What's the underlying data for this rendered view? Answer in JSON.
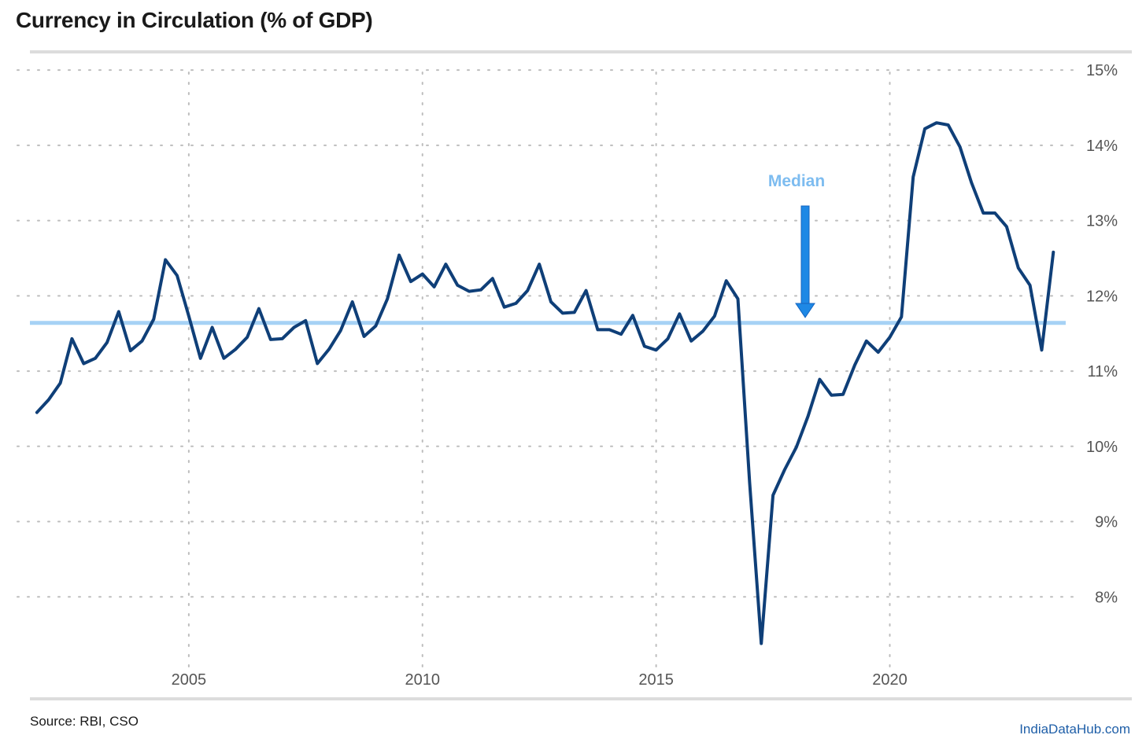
{
  "title": "Currency in Circulation (% of GDP)",
  "source": "Source: RBI, CSO",
  "brand": "IndiaDataHub.com",
  "colors": {
    "line": "#0f3f78",
    "median": "#a6d2f5",
    "arrow": "#1e88e5",
    "median_label": "#7dbcf0",
    "grid": "#bdbdbd"
  },
  "chart_data": {
    "type": "line",
    "title": "Currency in Circulation (% of GDP)",
    "xlabel": "",
    "ylabel": "",
    "y_axis_position": "right",
    "xlim": [
      2001.6,
      2024.0
    ],
    "ylim": [
      7.0,
      15.2
    ],
    "x_ticks": [
      2005,
      2010,
      2015,
      2020
    ],
    "x_tick_labels": [
      "2005",
      "2010",
      "2015",
      "2020"
    ],
    "y_ticks": [
      8,
      9,
      10,
      11,
      12,
      13,
      14,
      15
    ],
    "y_tick_labels": [
      "8%",
      "9%",
      "10%",
      "11%",
      "12%",
      "13%",
      "14%",
      "15%"
    ],
    "grid": "dotted",
    "median": {
      "value": 11.64,
      "label": "Median"
    },
    "series": [
      {
        "x": [
          2001.75,
          2002.0,
          2002.25,
          2002.5,
          2002.75,
          2003.0,
          2003.25,
          2003.5,
          2003.75,
          2004.0,
          2004.25,
          2004.5,
          2004.75,
          2005.0,
          2005.25,
          2005.5,
          2005.75,
          2006.0,
          2006.25,
          2006.5,
          2006.75,
          2007.0,
          2007.25,
          2007.5,
          2007.75,
          2008.0,
          2008.25,
          2008.5,
          2008.75,
          2009.0,
          2009.25,
          2009.5,
          2009.75,
          2010.0,
          2010.25,
          2010.5,
          2010.75,
          2011.0,
          2011.25,
          2011.5,
          2011.75,
          2012.0,
          2012.25,
          2012.5,
          2012.75,
          2013.0,
          2013.25,
          2013.5,
          2013.75,
          2014.0,
          2014.25,
          2014.5,
          2014.75,
          2015.0,
          2015.25,
          2015.5,
          2015.75,
          2016.0,
          2016.25,
          2016.5,
          2016.75,
          2017.0,
          2017.25,
          2017.5,
          2017.75,
          2018.0,
          2018.25,
          2018.5,
          2018.75,
          2019.0,
          2019.25,
          2019.5,
          2019.75,
          2020.0,
          2020.25,
          2020.5,
          2020.75,
          2021.0,
          2021.25,
          2021.5,
          2021.75,
          2022.0,
          2022.25,
          2022.5,
          2022.75,
          2023.0,
          2023.25,
          2023.5
        ],
        "y": [
          10.45,
          10.62,
          10.84,
          11.43,
          11.1,
          11.17,
          11.38,
          11.79,
          11.27,
          11.4,
          11.69,
          12.48,
          12.27,
          11.73,
          11.17,
          11.58,
          11.17,
          11.29,
          11.45,
          11.83,
          11.42,
          11.43,
          11.58,
          11.67,
          11.1,
          11.29,
          11.54,
          11.92,
          11.46,
          11.6,
          11.96,
          12.54,
          12.19,
          12.29,
          12.12,
          12.42,
          12.14,
          12.06,
          12.08,
          12.23,
          11.85,
          11.9,
          12.07,
          12.42,
          11.92,
          11.77,
          11.78,
          12.07,
          11.55,
          11.55,
          11.49,
          11.74,
          11.33,
          11.28,
          11.43,
          11.76,
          11.4,
          11.53,
          11.73,
          12.2,
          11.96,
          9.52,
          7.38,
          9.35,
          9.69,
          9.99,
          10.4,
          10.89,
          10.68,
          10.69,
          11.08,
          11.4,
          11.25,
          11.45,
          11.72,
          13.58,
          14.22,
          14.3,
          14.27,
          13.98,
          13.5,
          13.1,
          13.1,
          12.92,
          12.37,
          12.14,
          11.28,
          12.58
        ]
      }
    ]
  }
}
